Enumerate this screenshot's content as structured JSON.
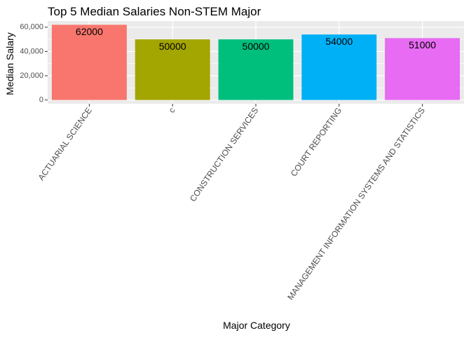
{
  "chart_data": {
    "type": "bar",
    "title": "Top 5 Median Salaries Non-STEM Major",
    "xlabel": "Major Category",
    "ylabel": "Median Salary",
    "categories": [
      "ACTUARIAL SCIENCE",
      "c",
      "CONSTRUCTION SERVICES",
      "COURT REPORTING",
      "MANAGEMENT INFORMATION SYSTEMS AND STATISTICS"
    ],
    "values": [
      62000,
      50000,
      50000,
      54000,
      51000
    ],
    "data_labels": [
      "62000",
      "50000",
      "50000",
      "54000",
      "51000"
    ],
    "colors": [
      "#F8766D",
      "#A3A500",
      "#00BF7D",
      "#00B0F6",
      "#E76BF3"
    ],
    "ylim": [
      -3100,
      65100
    ],
    "yticks": [
      0,
      20000,
      40000,
      60000
    ],
    "ytick_labels": [
      "0",
      "20,000",
      "40,000",
      "60,000"
    ],
    "grid": true,
    "panel_background": "#EBEBEB",
    "grid_color": "#FFFFFF",
    "legend": "none"
  }
}
